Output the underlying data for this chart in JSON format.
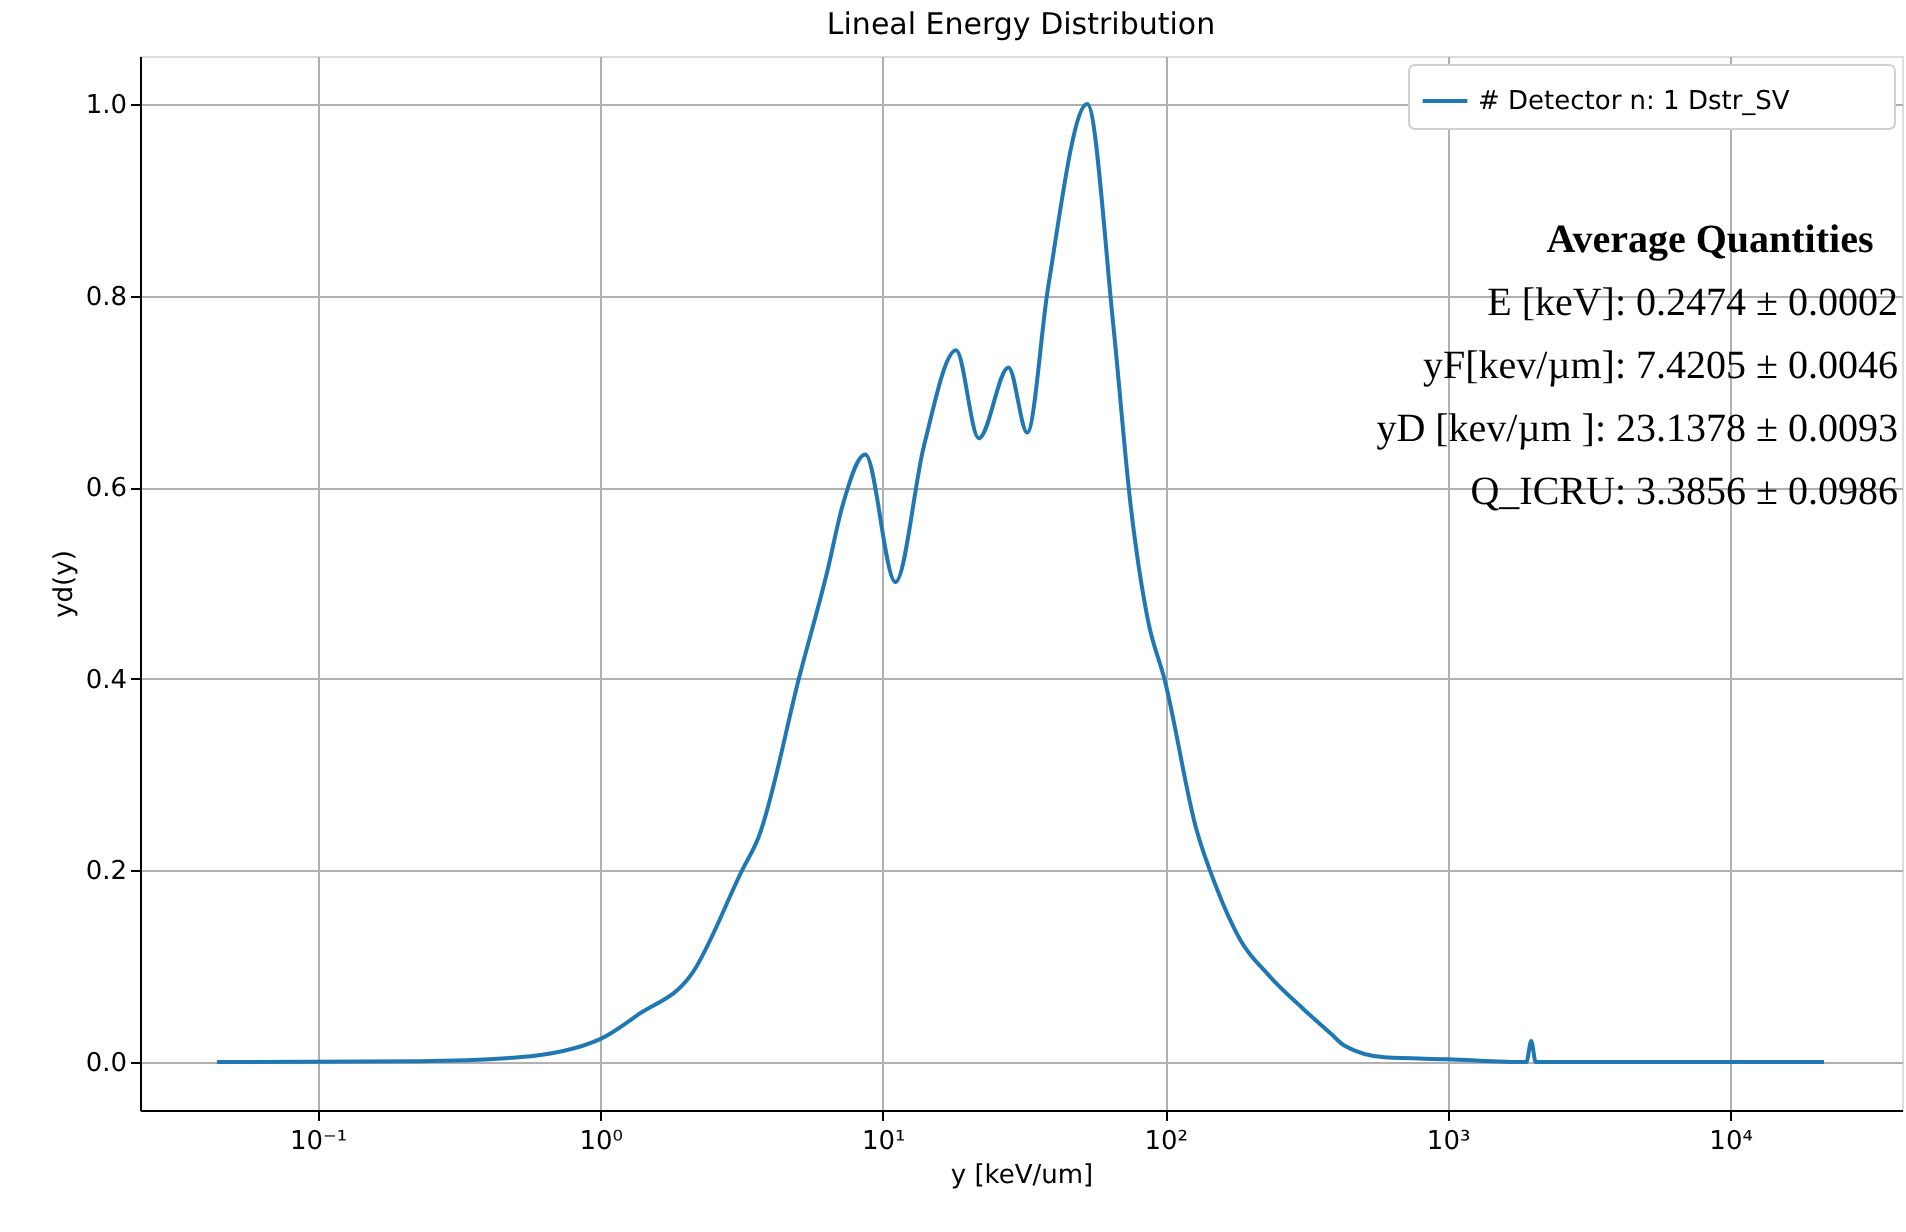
{
  "chart_data": {
    "type": "line",
    "title": "Lineal Energy Distribution",
    "xlabel": "y [keV/um]",
    "ylabel": "yd(y)",
    "log": "x",
    "grid": true,
    "legend": "top right",
    "marker": "none",
    "line_style": "solid",
    "xlim": [
      0.0235,
      40600
    ],
    "ylim": [
      -0.05,
      1.05
    ],
    "xticks": [
      {
        "value": 0.1,
        "label": "10⁻¹"
      },
      {
        "value": 1,
        "label": "10⁰"
      },
      {
        "value": 10,
        "label": "10¹"
      },
      {
        "value": 100,
        "label": "10²"
      },
      {
        "value": 1000,
        "label": "10³"
      },
      {
        "value": 10000,
        "label": "10⁴"
      }
    ],
    "yticks": [
      {
        "value": 0,
        "label": "0.0"
      },
      {
        "value": 0.2,
        "label": "0.2"
      },
      {
        "value": 0.4,
        "label": "0.4"
      },
      {
        "value": 0.6,
        "label": "0.6"
      },
      {
        "value": 0.8,
        "label": "0.8"
      },
      {
        "value": 1,
        "label": "1.0"
      }
    ],
    "annotations": [
      "Average Quantities",
      "E [keV]:  0.2474 ±  0.0002",
      "yF[kev/µm]:  7.4205 ±  0.0046",
      "yD [kev/µm ]:  23.1378 ±  0.0093",
      "Q_ICRU:   3.3856 ±  0.0986"
    ],
    "series": [
      {
        "name": "# Detector n:          1   Dstr_SV",
        "color": "#1f77b4",
        "x": [
          0.044,
          0.229,
          0.515,
          1.0,
          1.37,
          2.11,
          3.18,
          3.64,
          5.1,
          6.38,
          7.2,
          8.68,
          11.1,
          14.0,
          18.2,
          21.9,
          27.9,
          32.5,
          38.5,
          53,
          65.6,
          75.5,
          86.8,
          99.8,
          129,
          152,
          185,
          232,
          307,
          385,
          432,
          598,
          1000,
          1900,
          1977,
          2050,
          21500
        ],
        "values": [
          0.0,
          0.001,
          0.005,
          0.024,
          0.05,
          0.092,
          0.2,
          0.235,
          0.405,
          0.513,
          0.58,
          0.634,
          0.501,
          0.643,
          0.743,
          0.651,
          0.725,
          0.657,
          0.808,
          1.0,
          0.768,
          0.581,
          0.462,
          0.398,
          0.243,
          0.182,
          0.127,
          0.091,
          0.056,
          0.03,
          0.017,
          0.005,
          0.003,
          0.0,
          0.022,
          0.0,
          0.0
        ]
      }
    ]
  }
}
